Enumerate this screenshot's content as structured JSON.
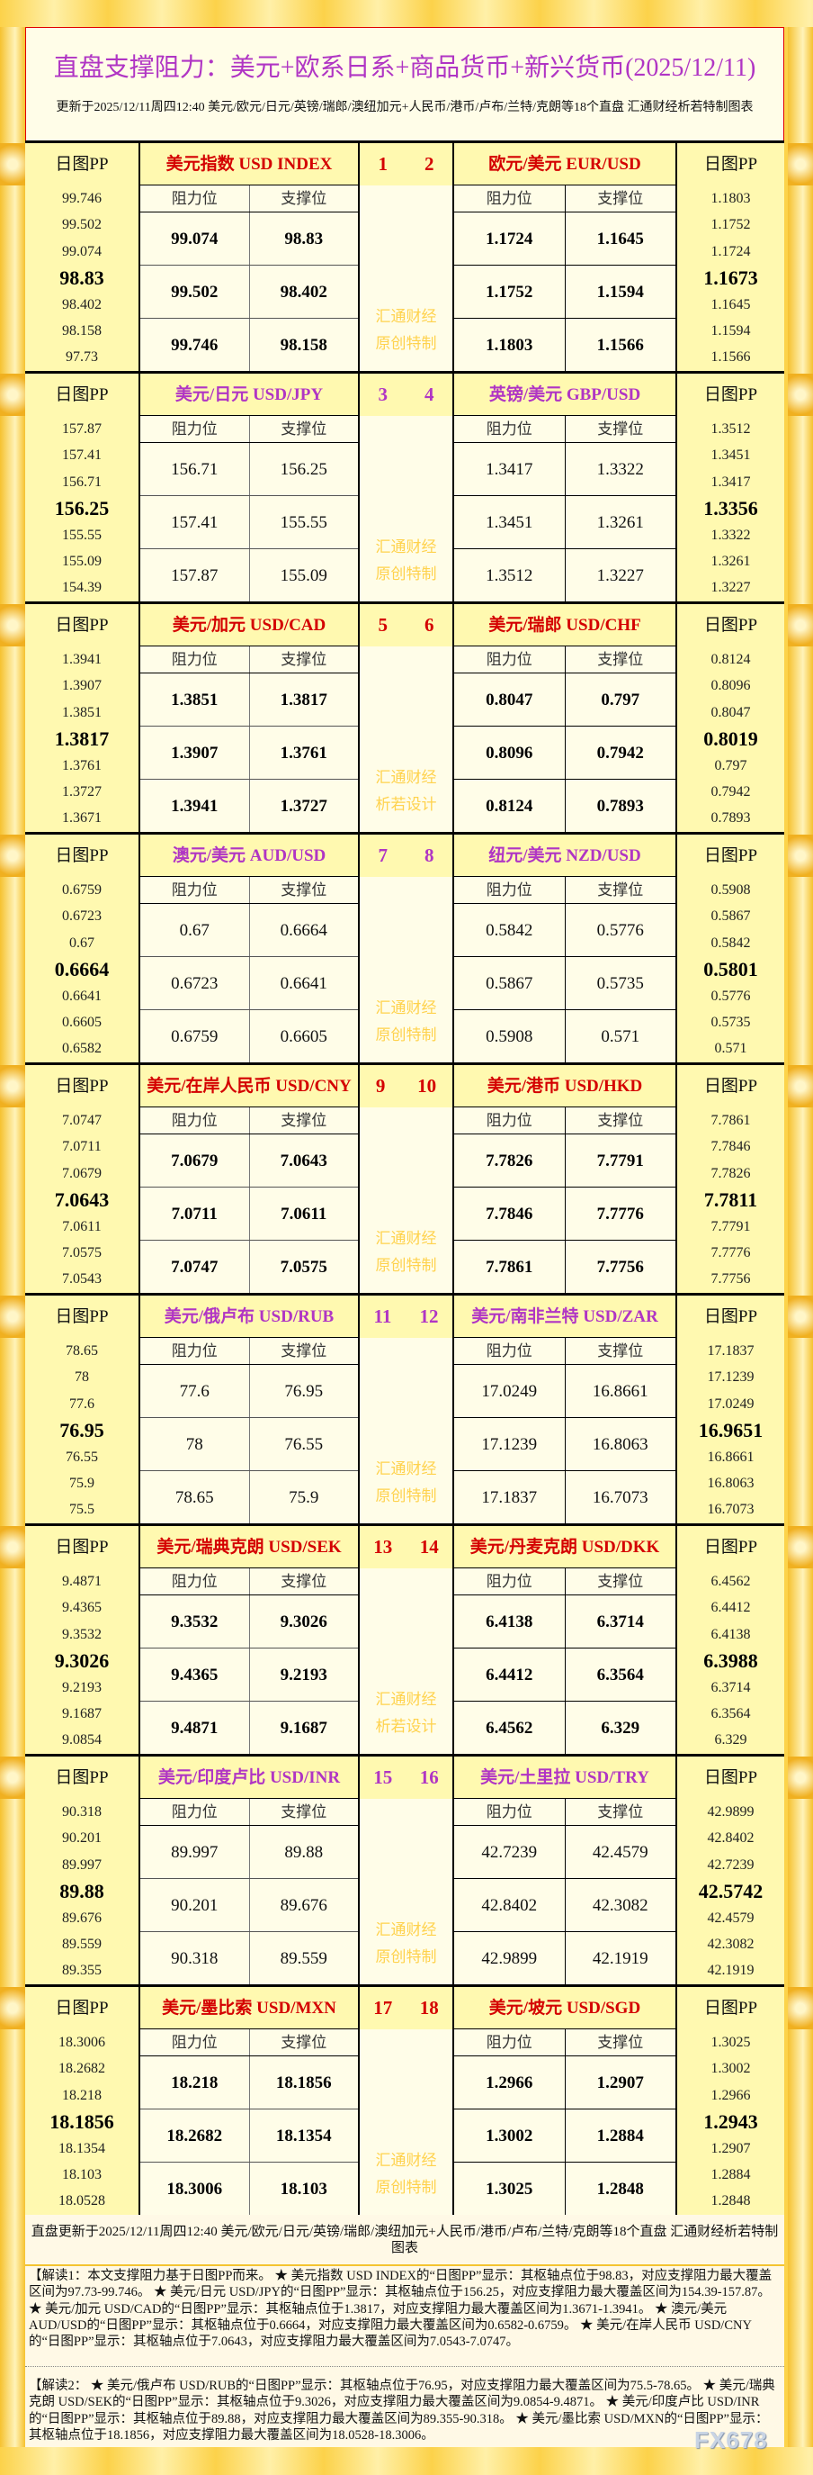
{
  "header": {
    "title": "直盘支撑阻力：美元+欧系日系+商品货币+新兴货币(2025/12/11)",
    "subtitle": "更新于2025/12/11周四12:40 美元/欧元/日元/英镑/瑞郎/澳纽加元+人民币/港币/卢布/兰特/克朗等18个直盘 汇通财经析若特制图表"
  },
  "labels": {
    "pp": "日图PP",
    "resistance": "阻力位",
    "support": "支撑位"
  },
  "colors": {
    "red": "#d40000",
    "purple": "#b035c4",
    "watermark": "#ffd24d"
  },
  "blocks": [
    {
      "nums": [
        "1",
        "2"
      ],
      "wm": [
        "汇通财经",
        "原创特制"
      ],
      "left": {
        "name": "美元指数 USD INDEX",
        "pp": [
          "99.746",
          "99.502",
          "99.074",
          "98.83",
          "98.402",
          "98.158",
          "97.73"
        ],
        "rows": [
          [
            "99.074",
            "98.83"
          ],
          [
            "99.502",
            "98.402"
          ],
          [
            "99.746",
            "98.158"
          ]
        ]
      },
      "right": {
        "name": "欧元/美元 EUR/USD",
        "pp": [
          "1.1803",
          "1.1752",
          "1.1724",
          "1.1673",
          "1.1645",
          "1.1594",
          "1.1566"
        ],
        "rows": [
          [
            "1.1724",
            "1.1645"
          ],
          [
            "1.1752",
            "1.1594"
          ],
          [
            "1.1803",
            "1.1566"
          ]
        ]
      }
    },
    {
      "nums": [
        "3",
        "4"
      ],
      "wm": [
        "汇通财经",
        "原创特制"
      ],
      "left": {
        "name": "美元/日元 USD/JPY",
        "pp": [
          "157.87",
          "157.41",
          "156.71",
          "156.25",
          "155.55",
          "155.09",
          "154.39"
        ],
        "rows": [
          [
            "156.71",
            "156.25"
          ],
          [
            "157.41",
            "155.55"
          ],
          [
            "157.87",
            "155.09"
          ]
        ]
      },
      "right": {
        "name": "英镑/美元 GBP/USD",
        "pp": [
          "1.3512",
          "1.3451",
          "1.3417",
          "1.3356",
          "1.3322",
          "1.3261",
          "1.3227"
        ],
        "rows": [
          [
            "1.3417",
            "1.3322"
          ],
          [
            "1.3451",
            "1.3261"
          ],
          [
            "1.3512",
            "1.3227"
          ]
        ]
      }
    },
    {
      "nums": [
        "5",
        "6"
      ],
      "wm": [
        "汇通财经",
        "析若设计"
      ],
      "left": {
        "name": "美元/加元 USD/CAD",
        "pp": [
          "1.3941",
          "1.3907",
          "1.3851",
          "1.3817",
          "1.3761",
          "1.3727",
          "1.3671"
        ],
        "rows": [
          [
            "1.3851",
            "1.3817"
          ],
          [
            "1.3907",
            "1.3761"
          ],
          [
            "1.3941",
            "1.3727"
          ]
        ]
      },
      "right": {
        "name": "美元/瑞郎 USD/CHF",
        "pp": [
          "0.8124",
          "0.8096",
          "0.8047",
          "0.8019",
          "0.797",
          "0.7942",
          "0.7893"
        ],
        "rows": [
          [
            "0.8047",
            "0.797"
          ],
          [
            "0.8096",
            "0.7942"
          ],
          [
            "0.8124",
            "0.7893"
          ]
        ]
      }
    },
    {
      "nums": [
        "7",
        "8"
      ],
      "wm": [
        "汇通财经",
        "原创特制"
      ],
      "left": {
        "name": "澳元/美元 AUD/USD",
        "pp": [
          "0.6759",
          "0.6723",
          "0.67",
          "0.6664",
          "0.6641",
          "0.6605",
          "0.6582"
        ],
        "rows": [
          [
            "0.67",
            "0.6664"
          ],
          [
            "0.6723",
            "0.6641"
          ],
          [
            "0.6759",
            "0.6605"
          ]
        ]
      },
      "right": {
        "name": "纽元/美元 NZD/USD",
        "pp": [
          "0.5908",
          "0.5867",
          "0.5842",
          "0.5801",
          "0.5776",
          "0.5735",
          "0.571"
        ],
        "rows": [
          [
            "0.5842",
            "0.5776"
          ],
          [
            "0.5867",
            "0.5735"
          ],
          [
            "0.5908",
            "0.571"
          ]
        ]
      }
    },
    {
      "nums": [
        "9",
        "10"
      ],
      "wm": [
        "汇通财经",
        "原创特制"
      ],
      "left": {
        "name": "美元/在岸人民币 USD/CNY",
        "pp": [
          "7.0747",
          "7.0711",
          "7.0679",
          "7.0643",
          "7.0611",
          "7.0575",
          "7.0543"
        ],
        "rows": [
          [
            "7.0679",
            "7.0643"
          ],
          [
            "7.0711",
            "7.0611"
          ],
          [
            "7.0747",
            "7.0575"
          ]
        ]
      },
      "right": {
        "name": "美元/港币 USD/HKD",
        "pp": [
          "7.7861",
          "7.7846",
          "7.7826",
          "7.7811",
          "7.7791",
          "7.7776",
          "7.7756"
        ],
        "rows": [
          [
            "7.7826",
            "7.7791"
          ],
          [
            "7.7846",
            "7.7776"
          ],
          [
            "7.7861",
            "7.7756"
          ]
        ]
      }
    },
    {
      "nums": [
        "11",
        "12"
      ],
      "wm": [
        "汇通财经",
        "原创特制"
      ],
      "left": {
        "name": "美元/俄卢布 USD/RUB",
        "pp": [
          "78.65",
          "78",
          "77.6",
          "76.95",
          "76.55",
          "75.9",
          "75.5"
        ],
        "rows": [
          [
            "77.6",
            "76.95"
          ],
          [
            "78",
            "76.55"
          ],
          [
            "78.65",
            "75.9"
          ]
        ]
      },
      "right": {
        "name": "美元/南非兰特 USD/ZAR",
        "pp": [
          "17.1837",
          "17.1239",
          "17.0249",
          "16.9651",
          "16.8661",
          "16.8063",
          "16.7073"
        ],
        "rows": [
          [
            "17.0249",
            "16.8661"
          ],
          [
            "17.1239",
            "16.8063"
          ],
          [
            "17.1837",
            "16.7073"
          ]
        ]
      }
    },
    {
      "nums": [
        "13",
        "14"
      ],
      "wm": [
        "汇通财经",
        "析若设计"
      ],
      "left": {
        "name": "美元/瑞典克朗 USD/SEK",
        "pp": [
          "9.4871",
          "9.4365",
          "9.3532",
          "9.3026",
          "9.2193",
          "9.1687",
          "9.0854"
        ],
        "rows": [
          [
            "9.3532",
            "9.3026"
          ],
          [
            "9.4365",
            "9.2193"
          ],
          [
            "9.4871",
            "9.1687"
          ]
        ]
      },
      "right": {
        "name": "美元/丹麦克朗 USD/DKK",
        "pp": [
          "6.4562",
          "6.4412",
          "6.4138",
          "6.3988",
          "6.3714",
          "6.3564",
          "6.329"
        ],
        "rows": [
          [
            "6.4138",
            "6.3714"
          ],
          [
            "6.4412",
            "6.3564"
          ],
          [
            "6.4562",
            "6.329"
          ]
        ]
      }
    },
    {
      "nums": [
        "15",
        "16"
      ],
      "wm": [
        "汇通财经",
        "原创特制"
      ],
      "left": {
        "name": "美元/印度卢比 USD/INR",
        "pp": [
          "90.318",
          "90.201",
          "89.997",
          "89.88",
          "89.676",
          "89.559",
          "89.355"
        ],
        "rows": [
          [
            "89.997",
            "89.88"
          ],
          [
            "90.201",
            "89.676"
          ],
          [
            "90.318",
            "89.559"
          ]
        ]
      },
      "right": {
        "name": "美元/土里拉 USD/TRY",
        "pp": [
          "42.9899",
          "42.8402",
          "42.7239",
          "42.5742",
          "42.4579",
          "42.3082",
          "42.1919"
        ],
        "rows": [
          [
            "42.7239",
            "42.4579"
          ],
          [
            "42.8402",
            "42.3082"
          ],
          [
            "42.9899",
            "42.1919"
          ]
        ]
      }
    },
    {
      "nums": [
        "17",
        "18"
      ],
      "wm": [
        "汇通财经",
        "原创特制"
      ],
      "left": {
        "name": "美元/墨比索 USD/MXN",
        "pp": [
          "18.3006",
          "18.2682",
          "18.218",
          "18.1856",
          "18.1354",
          "18.103",
          "18.0528"
        ],
        "rows": [
          [
            "18.218",
            "18.1856"
          ],
          [
            "18.2682",
            "18.1354"
          ],
          [
            "18.3006",
            "18.103"
          ]
        ]
      },
      "right": {
        "name": "美元/坡元 USD/SGD",
        "pp": [
          "1.3025",
          "1.3002",
          "1.2966",
          "1.2943",
          "1.2907",
          "1.2884",
          "1.2848"
        ],
        "rows": [
          [
            "1.2966",
            "1.2907"
          ],
          [
            "1.3002",
            "1.2884"
          ],
          [
            "1.3025",
            "1.2848"
          ]
        ]
      }
    }
  ],
  "footer": {
    "update": "直盘更新于2025/12/11周四12:40 美元/欧元/日元/英镑/瑞郎/澳纽加元+人民币/港币/卢布/兰特/克朗等18个直盘 汇通财经析若特制图表",
    "note1": "【解读1：本文支撑阻力基于日图PP而来。 ★ 美元指数 USD INDEX的“日图PP”显示：其枢轴点位于98.83，对应支撑阻力最大覆盖区间为97.73-99.746。 ★ 美元/日元 USD/JPY的“日图PP”显示：其枢轴点位于156.25，对应支撑阻力最大覆盖区间为154.39-157.87。 ★ 美元/加元 USD/CAD的“日图PP”显示：其枢轴点位于1.3817，对应支撑阻力最大覆盖区间为1.3671-1.3941。 ★ 澳元/美元 AUD/USD的“日图PP”显示：其枢轴点位于0.6664，对应支撑阻力最大覆盖区间为0.6582-0.6759。 ★ 美元/在岸人民币 USD/CNY的“日图PP”显示：其枢轴点位于7.0643，对应支撑阻力最大覆盖区间为7.0543-7.0747。",
    "note2": "【解读2： ★ 美元/俄卢布 USD/RUB的“日图PP”显示：其枢轴点位于76.95，对应支撑阻力最大覆盖区间为75.5-78.65。 ★ 美元/瑞典克朗 USD/SEK的“日图PP”显示：其枢轴点位于9.3026，对应支撑阻力最大覆盖区间为9.0854-9.4871。 ★ 美元/印度卢比 USD/INR的“日图PP”显示：其枢轴点位于89.88，对应支撑阻力最大覆盖区间为89.355-90.318。 ★ 美元/墨比索 USD/MXN的“日图PP”显示：其枢轴点位于18.1856，对应支撑阻力最大覆盖区间为18.0528-18.3006。",
    "logo": "FX678"
  }
}
